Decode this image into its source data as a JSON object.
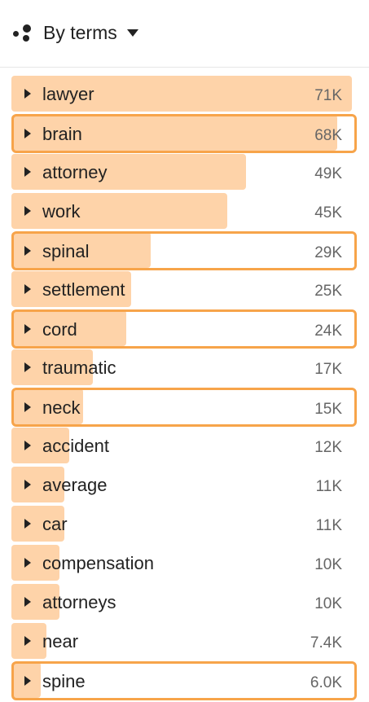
{
  "header": {
    "label": "By terms",
    "icon": "dots-icon",
    "caret": "caret-down-icon"
  },
  "colors": {
    "bar": "#fed3a9",
    "highlight_border": "#f7a44a",
    "text": "#222222",
    "count_text": "#666666"
  },
  "terms": [
    {
      "term": "lawyer",
      "count": "71K",
      "share": 1.0,
      "highlighted": false
    },
    {
      "term": "brain",
      "count": "68K",
      "share": 0.958,
      "highlighted": true
    },
    {
      "term": "attorney",
      "count": "49K",
      "share": 0.69,
      "highlighted": false
    },
    {
      "term": "work",
      "count": "45K",
      "share": 0.634,
      "highlighted": false
    },
    {
      "term": "spinal",
      "count": "29K",
      "share": 0.408,
      "highlighted": true
    },
    {
      "term": "settlement",
      "count": "25K",
      "share": 0.352,
      "highlighted": false
    },
    {
      "term": "cord",
      "count": "24K",
      "share": 0.338,
      "highlighted": true
    },
    {
      "term": "traumatic",
      "count": "17K",
      "share": 0.239,
      "highlighted": false
    },
    {
      "term": "neck",
      "count": "15K",
      "share": 0.211,
      "highlighted": true
    },
    {
      "term": "accident",
      "count": "12K",
      "share": 0.169,
      "highlighted": false
    },
    {
      "term": "average",
      "count": "11K",
      "share": 0.155,
      "highlighted": false
    },
    {
      "term": "car",
      "count": "11K",
      "share": 0.155,
      "highlighted": false
    },
    {
      "term": "compensation",
      "count": "10K",
      "share": 0.141,
      "highlighted": false
    },
    {
      "term": "attorneys",
      "count": "10K",
      "share": 0.141,
      "highlighted": false
    },
    {
      "term": "near",
      "count": "7.4K",
      "share": 0.104,
      "highlighted": false
    },
    {
      "term": "spine",
      "count": "6.0K",
      "share": 0.085,
      "highlighted": true
    }
  ]
}
